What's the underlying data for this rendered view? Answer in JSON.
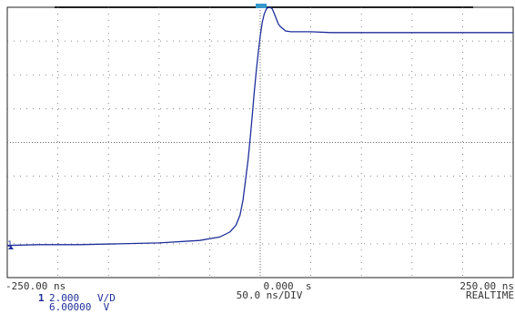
{
  "chart_data": {
    "type": "line",
    "xlabel": "",
    "ylabel": "",
    "xlim": [
      -250,
      250
    ],
    "ylim": [
      -8,
      8
    ],
    "grid": true,
    "series": [
      {
        "x": [
          -250,
          -220,
          -180,
          -140,
          -100,
          -60,
          -40,
          -30,
          -24,
          -20,
          -17,
          -14,
          -12,
          -10,
          -8,
          -6,
          -4,
          -2,
          0,
          2,
          4,
          6,
          8,
          10,
          12,
          14,
          16,
          18,
          20,
          25,
          30,
          35,
          40,
          50,
          70,
          100,
          150,
          200,
          250
        ],
        "y": [
          -6.1,
          -6.05,
          -6.05,
          -6.0,
          -5.95,
          -5.8,
          -5.6,
          -5.3,
          -4.9,
          -4.3,
          -3.4,
          -2.0,
          -1.0,
          0.2,
          1.5,
          2.9,
          4.2,
          5.3,
          6.3,
          7.1,
          7.6,
          7.9,
          8.0,
          8.0,
          7.9,
          7.6,
          7.3,
          7.0,
          6.85,
          6.6,
          6.55,
          6.55,
          6.55,
          6.55,
          6.5,
          6.5,
          6.5,
          6.5,
          6.5
        ]
      }
    ]
  },
  "scale": {
    "x_left": "-250.00 ns",
    "x_center": "0.000  s",
    "x_right": "250.00 ns",
    "timebase": "50.0 ns/DIV",
    "mode": "REALTIME"
  },
  "channel": {
    "number": "1",
    "vdiv": "2.000   V/D",
    "offset": "6.00000  V",
    "color": "#1f2f9a"
  },
  "marker": {
    "ground_label": "1"
  },
  "colors": {
    "trace": "#1f2f9a",
    "grid": "#666666",
    "frame": "#222222",
    "marker": "#3399cc"
  }
}
